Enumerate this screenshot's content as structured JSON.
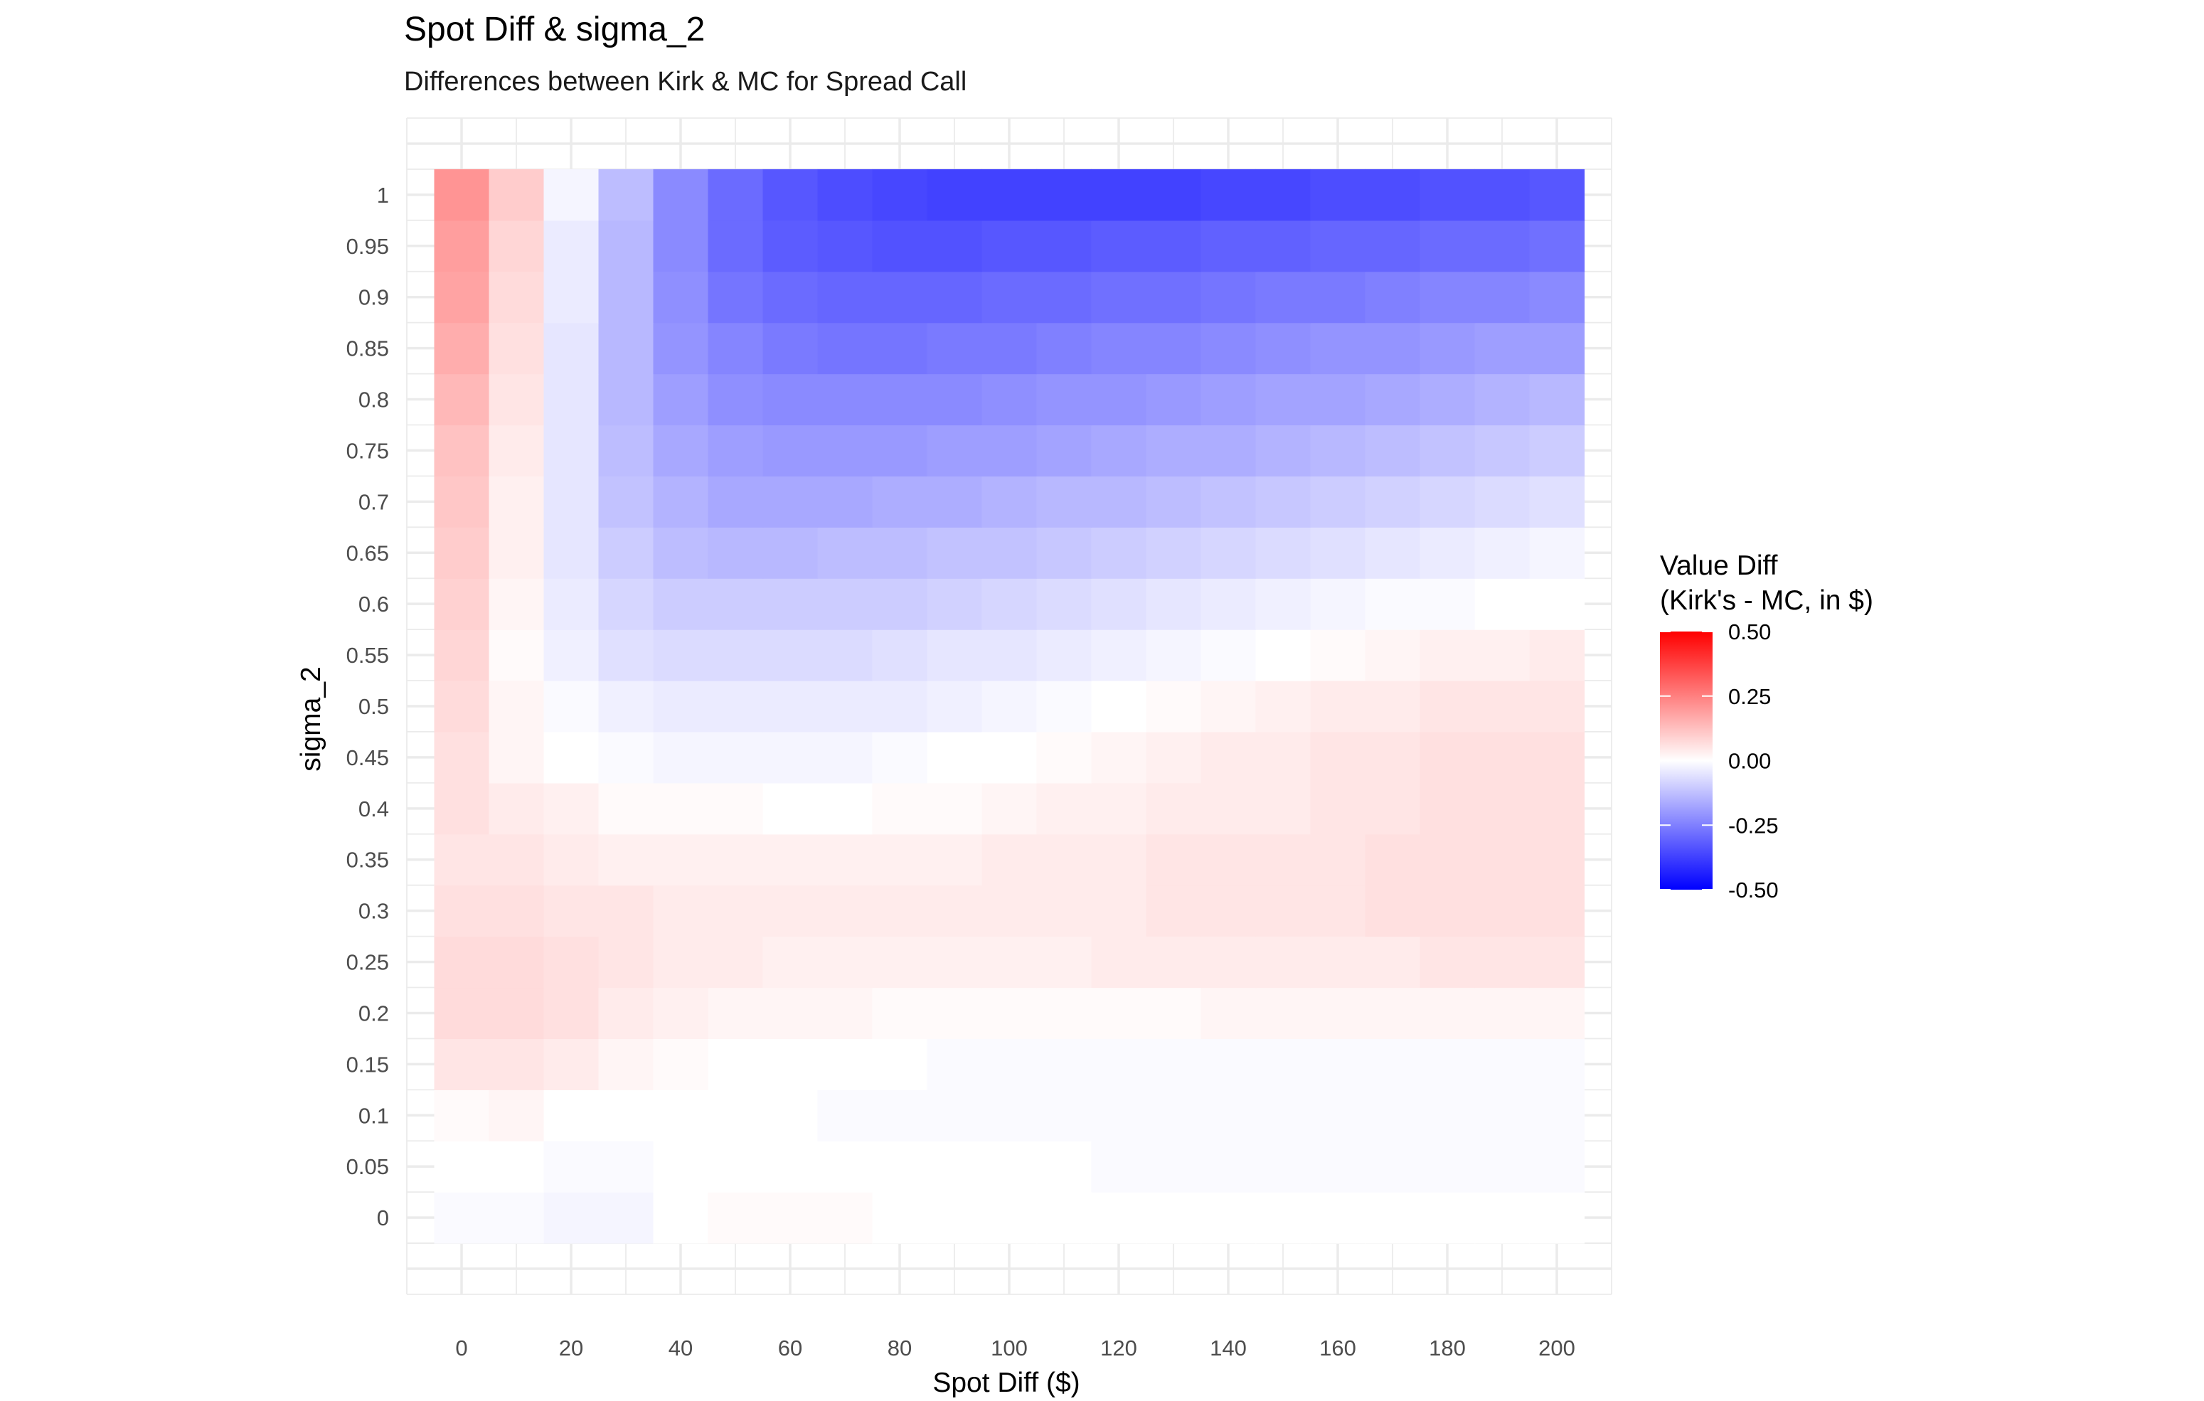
{
  "chart_data": {
    "type": "heatmap",
    "title": "Spot Diff & sigma_2",
    "subtitle": "Differences between Kirk & MC for Spread Call",
    "xlabel": "Spot Diff ($)",
    "ylabel": "sigma_2",
    "x": [
      0,
      10,
      20,
      30,
      40,
      50,
      60,
      70,
      80,
      90,
      100,
      110,
      120,
      130,
      140,
      150,
      160,
      170,
      180,
      190,
      200
    ],
    "y": [
      0,
      0.05,
      0.1,
      0.15,
      0.2,
      0.25,
      0.3,
      0.35,
      0.4,
      0.45,
      0.5,
      0.55,
      0.6,
      0.65,
      0.7,
      0.75,
      0.8,
      0.85,
      0.9,
      0.95,
      1
    ],
    "x_ticks": [
      "0",
      "20",
      "40",
      "60",
      "80",
      "100",
      "120",
      "140",
      "160",
      "180",
      "200"
    ],
    "y_ticks": [
      "0",
      "0.05",
      "0.1",
      "0.15",
      "0.2",
      "0.25",
      "0.3",
      "0.35",
      "0.4",
      "0.45",
      "0.5",
      "0.55",
      "0.6",
      "0.65",
      "0.7",
      "0.75",
      "0.8",
      "0.85",
      "0.9",
      "0.95",
      "1"
    ],
    "xlim": [
      -10,
      210
    ],
    "ylim": [
      -0.075,
      1.075
    ],
    "z": [
      [
        -0.01,
        -0.01,
        -0.02,
        -0.02,
        0.0,
        0.01,
        0.01,
        0.01,
        0.0,
        0.0,
        0.0,
        0.0,
        0.0,
        0.0,
        0.0,
        0.0,
        0.0,
        0.0,
        0.0,
        0.0,
        0.0
      ],
      [
        0.0,
        0.0,
        -0.01,
        -0.01,
        0.0,
        0.0,
        0.0,
        0.0,
        0.0,
        0.0,
        0.0,
        0.0,
        -0.01,
        -0.01,
        -0.01,
        -0.01,
        -0.01,
        -0.01,
        -0.01,
        -0.01,
        -0.01
      ],
      [
        0.01,
        0.02,
        0.0,
        0.0,
        0.0,
        0.0,
        0.0,
        -0.01,
        -0.01,
        -0.01,
        -0.01,
        -0.01,
        -0.01,
        -0.01,
        -0.01,
        -0.01,
        -0.01,
        -0.01,
        -0.01,
        -0.01,
        -0.01
      ],
      [
        0.05,
        0.05,
        0.04,
        0.02,
        0.01,
        0.0,
        0.0,
        0.0,
        0.0,
        -0.01,
        -0.01,
        -0.01,
        -0.01,
        -0.01,
        -0.01,
        -0.01,
        -0.01,
        -0.01,
        -0.01,
        -0.01,
        -0.01
      ],
      [
        0.07,
        0.07,
        0.06,
        0.04,
        0.03,
        0.02,
        0.02,
        0.02,
        0.01,
        0.01,
        0.01,
        0.01,
        0.01,
        0.01,
        0.02,
        0.02,
        0.02,
        0.02,
        0.02,
        0.02,
        0.02
      ],
      [
        0.07,
        0.07,
        0.06,
        0.05,
        0.04,
        0.04,
        0.03,
        0.03,
        0.03,
        0.03,
        0.03,
        0.03,
        0.04,
        0.04,
        0.04,
        0.04,
        0.04,
        0.04,
        0.05,
        0.05,
        0.05
      ],
      [
        0.06,
        0.06,
        0.05,
        0.05,
        0.04,
        0.04,
        0.04,
        0.04,
        0.04,
        0.04,
        0.04,
        0.04,
        0.04,
        0.05,
        0.05,
        0.05,
        0.05,
        0.06,
        0.06,
        0.06,
        0.06
      ],
      [
        0.05,
        0.05,
        0.04,
        0.03,
        0.03,
        0.03,
        0.03,
        0.03,
        0.03,
        0.03,
        0.04,
        0.04,
        0.04,
        0.05,
        0.05,
        0.05,
        0.05,
        0.06,
        0.06,
        0.06,
        0.06
      ],
      [
        0.06,
        0.04,
        0.03,
        0.01,
        0.01,
        0.01,
        0.0,
        0.0,
        0.01,
        0.01,
        0.02,
        0.03,
        0.03,
        0.04,
        0.04,
        0.04,
        0.05,
        0.05,
        0.06,
        0.06,
        0.06
      ],
      [
        0.06,
        0.02,
        0.0,
        -0.01,
        -0.02,
        -0.02,
        -0.02,
        -0.02,
        -0.01,
        0.0,
        0.0,
        0.01,
        0.02,
        0.03,
        0.04,
        0.04,
        0.05,
        0.05,
        0.06,
        0.06,
        0.06
      ],
      [
        0.07,
        0.02,
        -0.01,
        -0.03,
        -0.04,
        -0.04,
        -0.04,
        -0.04,
        -0.04,
        -0.03,
        -0.02,
        -0.01,
        0.0,
        0.01,
        0.02,
        0.03,
        0.04,
        0.04,
        0.05,
        0.05,
        0.05
      ],
      [
        0.08,
        0.01,
        -0.03,
        -0.06,
        -0.07,
        -0.07,
        -0.07,
        -0.07,
        -0.06,
        -0.05,
        -0.05,
        -0.04,
        -0.03,
        -0.02,
        -0.01,
        0.0,
        0.01,
        0.02,
        0.03,
        0.03,
        0.04
      ],
      [
        0.09,
        0.02,
        -0.04,
        -0.08,
        -0.1,
        -0.1,
        -0.1,
        -0.1,
        -0.1,
        -0.09,
        -0.08,
        -0.07,
        -0.06,
        -0.05,
        -0.04,
        -0.03,
        -0.02,
        -0.01,
        -0.01,
        0.0,
        0.0
      ],
      [
        0.1,
        0.03,
        -0.05,
        -0.1,
        -0.13,
        -0.14,
        -0.14,
        -0.13,
        -0.13,
        -0.12,
        -0.12,
        -0.11,
        -0.1,
        -0.09,
        -0.08,
        -0.07,
        -0.06,
        -0.05,
        -0.04,
        -0.03,
        -0.02
      ],
      [
        0.11,
        0.03,
        -0.05,
        -0.12,
        -0.15,
        -0.17,
        -0.17,
        -0.17,
        -0.16,
        -0.16,
        -0.15,
        -0.14,
        -0.14,
        -0.13,
        -0.12,
        -0.11,
        -0.1,
        -0.09,
        -0.08,
        -0.07,
        -0.06
      ],
      [
        0.12,
        0.04,
        -0.05,
        -0.13,
        -0.17,
        -0.19,
        -0.2,
        -0.2,
        -0.2,
        -0.19,
        -0.19,
        -0.18,
        -0.17,
        -0.16,
        -0.16,
        -0.15,
        -0.14,
        -0.13,
        -0.12,
        -0.11,
        -0.1
      ],
      [
        0.14,
        0.05,
        -0.05,
        -0.14,
        -0.19,
        -0.22,
        -0.23,
        -0.23,
        -0.23,
        -0.23,
        -0.22,
        -0.21,
        -0.21,
        -0.2,
        -0.19,
        -0.18,
        -0.18,
        -0.17,
        -0.16,
        -0.15,
        -0.14
      ],
      [
        0.16,
        0.06,
        -0.05,
        -0.14,
        -0.21,
        -0.24,
        -0.26,
        -0.27,
        -0.27,
        -0.26,
        -0.26,
        -0.25,
        -0.24,
        -0.24,
        -0.23,
        -0.22,
        -0.21,
        -0.21,
        -0.2,
        -0.19,
        -0.19
      ],
      [
        0.18,
        0.07,
        -0.04,
        -0.14,
        -0.22,
        -0.27,
        -0.29,
        -0.3,
        -0.3,
        -0.3,
        -0.29,
        -0.29,
        -0.28,
        -0.28,
        -0.27,
        -0.26,
        -0.26,
        -0.25,
        -0.24,
        -0.24,
        -0.23
      ],
      [
        0.19,
        0.08,
        -0.04,
        -0.14,
        -0.23,
        -0.29,
        -0.32,
        -0.33,
        -0.34,
        -0.34,
        -0.33,
        -0.33,
        -0.32,
        -0.32,
        -0.31,
        -0.31,
        -0.3,
        -0.3,
        -0.29,
        -0.29,
        -0.28
      ],
      [
        0.21,
        0.1,
        -0.02,
        -0.13,
        -0.23,
        -0.29,
        -0.33,
        -0.35,
        -0.36,
        -0.37,
        -0.37,
        -0.37,
        -0.37,
        -0.37,
        -0.36,
        -0.36,
        -0.35,
        -0.35,
        -0.34,
        -0.34,
        -0.33
      ]
    ],
    "legend": {
      "title_line1": "Value Diff",
      "title_line2": "(Kirk's - MC, in $)",
      "labels": [
        "0.50",
        "0.25",
        "0.00",
        "-0.25",
        "-0.50"
      ],
      "values": [
        0.5,
        0.25,
        0.0,
        -0.25,
        -0.5
      ],
      "limits": [
        -0.5,
        0.5
      ],
      "colors": {
        "low": "#0000ff",
        "mid": "#ffffff",
        "high": "#ff0000"
      },
      "placement": "right"
    },
    "grid": true,
    "grid_color": "#ebebeb"
  }
}
